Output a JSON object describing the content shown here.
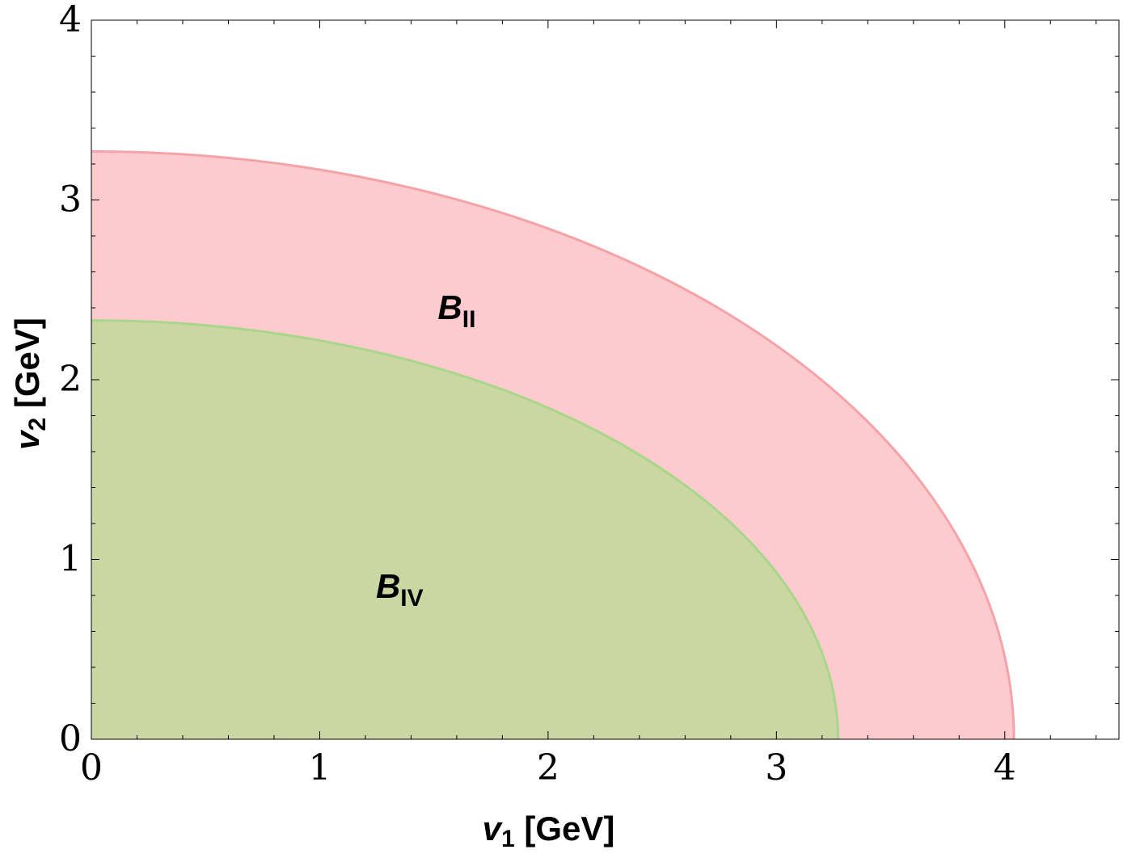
{
  "chart_data": {
    "type": "area",
    "xlabel": "v1 [GeV]",
    "xlabel_main": "v",
    "xlabel_sub": "1",
    "xlabel_unit": " [GeV]",
    "ylabel": "v2 [GeV]",
    "ylabel_main": "v",
    "ylabel_sub": "2",
    "ylabel_unit": " [GeV]",
    "xlim": [
      0,
      4.5
    ],
    "ylim": [
      0,
      4
    ],
    "x_ticks": [
      "0",
      "1",
      "2",
      "3",
      "4"
    ],
    "y_ticks": [
      "0",
      "1",
      "2",
      "3",
      "4"
    ],
    "grid": false,
    "series": [
      {
        "name": "B_II",
        "label_main": "B",
        "label_sub": "II",
        "shape": "quarter-ellipse",
        "x_intercept": 4.04,
        "y_intercept": 3.27,
        "fill_color": "#fdcacd",
        "edge_color": "#f4a3a8",
        "label_at": [
          1.6,
          2.4
        ]
      },
      {
        "name": "B_IV",
        "label_main": "B",
        "label_sub": "IV",
        "shape": "quarter-ellipse",
        "x_intercept": 3.27,
        "y_intercept": 2.33,
        "fill_color": "#cbd7a3",
        "edge_color": "#a8d68a",
        "label_at": [
          1.35,
          0.85
        ]
      }
    ]
  }
}
